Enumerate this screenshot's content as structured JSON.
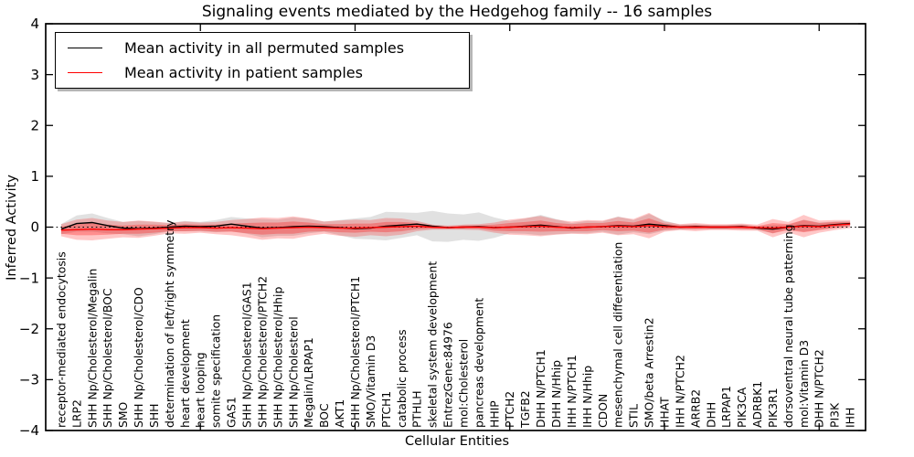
{
  "legend": {
    "items": [
      {
        "label": "Mean activity in all permuted samples",
        "color": "#000000"
      },
      {
        "label": "Mean activity in patient samples",
        "color": "#ff0000"
      }
    ]
  },
  "chart_data": {
    "type": "line",
    "title": "Signaling events mediated by the Hedgehog family -- 16 samples",
    "xlabel": "Cellular Entities",
    "ylabel": "Inferred Activity",
    "ylim": [
      -4,
      4
    ],
    "ytick_values": [
      4,
      3,
      2,
      1,
      0,
      -1,
      -2,
      -3,
      -4
    ],
    "ytick_labels": [
      "4",
      "3",
      "2",
      "1",
      "0",
      "−1",
      "−2",
      "−3",
      "−4"
    ],
    "xtick_indices": [
      9,
      19,
      29,
      39,
      49
    ],
    "zero_line": true,
    "grid": false,
    "legend_position": "upper left",
    "categories": [
      "receptor-mediated endocytosis",
      "LRP2",
      "SHH Np/Cholesterol/Megalin",
      "SHH Np/Cholesterol/BOC",
      "SMO",
      "SHH Np/Cholesterol/CDO",
      "SHH",
      "determination of left/right symmetry",
      "heart development",
      "heart looping",
      "somite specification",
      "GAS1",
      "SHH Np/Cholesterol/GAS1",
      "SHH Np/Cholesterol/PTCH2",
      "SHH Np/Cholesterol/Hhip",
      "SHH Np/Cholesterol",
      "Megalin/LRPAP1",
      "BOC",
      "AKT1",
      "SHH Np/Cholesterol/PTCH1",
      "SMO/Vitamin D3",
      "PTCH1",
      "catabolic process",
      "PTHLH",
      "skeletal system development",
      "EntrezGene:84976",
      "mol:Cholesterol",
      "pancreas development",
      "HHIP",
      "PTCH2",
      "TGFB2",
      "DHH N/PTCH1",
      "DHH N/Hhip",
      "IHH N/PTCH1",
      "IHH N/Hhip",
      "CDON",
      "mesenchymal cell differentiation",
      "STIL",
      "SMO/beta Arrestin2",
      "HHAT",
      "IHH N/PTCH2",
      "ARRB2",
      "DHH",
      "LRPAP1",
      "PIK3CA",
      "ADRBK1",
      "PIK3R1",
      "dorsoventral neural tube patterning",
      "mol:Vitamin D3",
      "DHH N/PTCH2",
      "PI3K",
      "IHH"
    ],
    "series": [
      {
        "id": "permuted-mean",
        "name": "Mean activity in all permuted samples",
        "color": "#000000",
        "values": [
          -0.04,
          0.07,
          0.09,
          0.03,
          -0.02,
          -0.03,
          -0.02,
          0.0,
          0.02,
          0.01,
          0.02,
          0.06,
          0.02,
          -0.02,
          -0.01,
          0.01,
          0.02,
          0.01,
          -0.01,
          -0.03,
          -0.02,
          0.02,
          0.04,
          0.06,
          0.02,
          -0.01,
          0.0,
          0.01,
          -0.01,
          0.0,
          0.02,
          0.04,
          0.01,
          -0.02,
          0.0,
          0.01,
          0.03,
          0.02,
          0.06,
          0.03,
          0.0,
          0.01,
          0.0,
          0.0,
          0.01,
          -0.02,
          -0.04,
          0.0,
          0.03,
          0.02,
          0.05,
          0.07
        ]
      },
      {
        "id": "patient-mean",
        "name": "Mean activity in patient samples",
        "color": "#ff0000",
        "values": [
          -0.06,
          -0.05,
          -0.04,
          -0.05,
          -0.05,
          -0.04,
          -0.03,
          -0.02,
          -0.01,
          -0.01,
          -0.02,
          -0.01,
          -0.02,
          -0.03,
          -0.02,
          -0.01,
          0.0,
          -0.01,
          -0.02,
          -0.02,
          -0.01,
          0.0,
          0.01,
          0.02,
          0.0,
          -0.01,
          0.0,
          0.0,
          -0.01,
          0.0,
          0.01,
          0.02,
          0.0,
          -0.01,
          0.0,
          0.01,
          0.02,
          0.01,
          0.03,
          0.01,
          0.0,
          0.0,
          0.0,
          0.0,
          0.0,
          -0.01,
          -0.02,
          0.0,
          0.02,
          0.01,
          0.04,
          0.06
        ]
      }
    ],
    "bands": [
      {
        "id": "permuted-spread",
        "center_series": 0,
        "color": "#aaaaaa",
        "opacity": 0.35,
        "halfwidths": [
          0.1,
          0.16,
          0.18,
          0.15,
          0.12,
          0.15,
          0.12,
          0.08,
          0.1,
          0.09,
          0.12,
          0.14,
          0.15,
          0.18,
          0.16,
          0.18,
          0.14,
          0.1,
          0.15,
          0.2,
          0.22,
          0.28,
          0.25,
          0.22,
          0.3,
          0.28,
          0.25,
          0.28,
          0.2,
          0.12,
          0.15,
          0.2,
          0.15,
          0.1,
          0.12,
          0.1,
          0.18,
          0.12,
          0.2,
          0.1,
          0.05,
          0.05,
          0.04,
          0.04,
          0.05,
          0.04,
          0.08,
          0.04,
          0.12,
          0.07,
          0.06,
          0.05
        ]
      },
      {
        "id": "patient-spread-outer",
        "center_series": 1,
        "color": "#ff0000",
        "opacity": 0.22,
        "halfwidths": [
          0.12,
          0.2,
          0.22,
          0.18,
          0.15,
          0.17,
          0.14,
          0.1,
          0.12,
          0.1,
          0.12,
          0.15,
          0.18,
          0.22,
          0.2,
          0.22,
          0.17,
          0.12,
          0.15,
          0.17,
          0.15,
          0.18,
          0.16,
          0.1,
          0.05,
          0.04,
          0.05,
          0.06,
          0.1,
          0.15,
          0.17,
          0.2,
          0.15,
          0.12,
          0.14,
          0.12,
          0.18,
          0.15,
          0.25,
          0.1,
          0.06,
          0.08,
          0.06,
          0.06,
          0.07,
          0.06,
          0.18,
          0.1,
          0.22,
          0.12,
          0.1,
          0.08
        ]
      },
      {
        "id": "patient-spread-inner",
        "center_series": 1,
        "color": "#ff0000",
        "opacity": 0.28,
        "halfwidths": [
          0.07,
          0.11,
          0.12,
          0.1,
          0.08,
          0.09,
          0.08,
          0.06,
          0.07,
          0.06,
          0.07,
          0.08,
          0.1,
          0.12,
          0.11,
          0.12,
          0.09,
          0.07,
          0.08,
          0.09,
          0.08,
          0.1,
          0.09,
          0.06,
          0.03,
          0.02,
          0.03,
          0.03,
          0.06,
          0.08,
          0.09,
          0.11,
          0.08,
          0.07,
          0.08,
          0.07,
          0.1,
          0.08,
          0.14,
          0.06,
          0.03,
          0.04,
          0.03,
          0.03,
          0.04,
          0.03,
          0.1,
          0.06,
          0.12,
          0.07,
          0.06,
          0.04
        ]
      }
    ]
  }
}
